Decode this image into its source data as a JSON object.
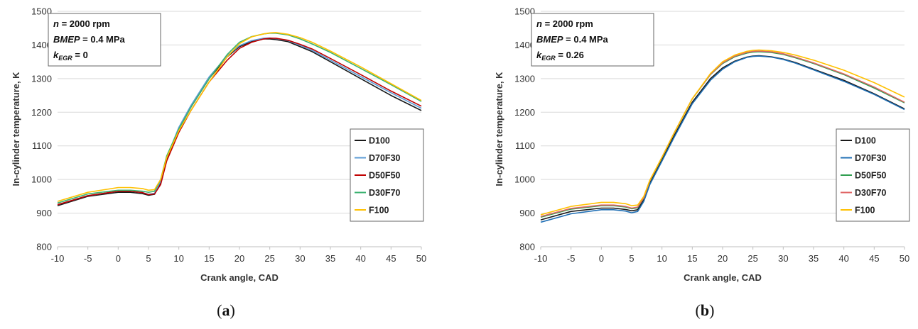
{
  "chart_data": [
    {
      "type": "line",
      "panel_label": "a",
      "xlabel": "Crank angle, CAD",
      "ylabel": "In-cylinder temperature, K",
      "xlim": [
        -10,
        50
      ],
      "ylim": [
        800,
        1500
      ],
      "xticks": [
        -10,
        -5,
        0,
        5,
        10,
        15,
        20,
        25,
        30,
        35,
        40,
        45,
        50
      ],
      "yticks": [
        800,
        900,
        1000,
        1100,
        1200,
        1300,
        1400,
        1500
      ],
      "grid": "horizontal",
      "legend_position": "right",
      "annotation": {
        "line1": {
          "var": "n",
          "text": " = 2000 rpm"
        },
        "line2": {
          "var": "BMEP",
          "text": " = 0.4 MPa"
        },
        "line3": {
          "var": "k",
          "sub": "EGR",
          "text": " = 0"
        }
      },
      "x": [
        -10,
        -5,
        0,
        2,
        4,
        5,
        6,
        7,
        8,
        10,
        12,
        15,
        18,
        20,
        22,
        24,
        25,
        26,
        28,
        30,
        32,
        35,
        40,
        45,
        50
      ],
      "series": [
        {
          "name": "D100",
          "color": "#1a1a1a",
          "values": [
            922,
            950,
            962,
            962,
            958,
            953,
            956,
            990,
            1060,
            1150,
            1215,
            1300,
            1365,
            1395,
            1410,
            1418,
            1418,
            1416,
            1410,
            1395,
            1380,
            1350,
            1300,
            1250,
            1205
          ]
        },
        {
          "name": "D70F30",
          "color": "#5b9bd5",
          "values": [
            925,
            952,
            965,
            965,
            961,
            956,
            959,
            995,
            1065,
            1155,
            1220,
            1305,
            1368,
            1398,
            1413,
            1420,
            1421,
            1419,
            1413,
            1399,
            1384,
            1355,
            1306,
            1258,
            1212
          ]
        },
        {
          "name": "D50F50",
          "color": "#c00000",
          "values": [
            925,
            952,
            965,
            965,
            961,
            955,
            957,
            985,
            1055,
            1140,
            1205,
            1290,
            1355,
            1390,
            1408,
            1418,
            1420,
            1420,
            1414,
            1402,
            1388,
            1360,
            1312,
            1263,
            1218
          ]
        },
        {
          "name": "D30F70",
          "color": "#3cb371",
          "values": [
            930,
            957,
            968,
            968,
            965,
            962,
            965,
            1000,
            1070,
            1150,
            1215,
            1300,
            1372,
            1408,
            1425,
            1433,
            1435,
            1435,
            1430,
            1418,
            1403,
            1378,
            1330,
            1282,
            1232
          ]
        },
        {
          "name": "F100",
          "color": "#ffc000",
          "values": [
            935,
            962,
            976,
            976,
            973,
            968,
            970,
            1000,
            1065,
            1145,
            1205,
            1290,
            1365,
            1404,
            1424,
            1433,
            1436,
            1437,
            1432,
            1422,
            1408,
            1382,
            1335,
            1285,
            1235
          ]
        }
      ]
    },
    {
      "type": "line",
      "panel_label": "b",
      "xlabel": "Crank angle, CAD",
      "ylabel": "In-cylinder temperature, K",
      "xlim": [
        -10,
        50
      ],
      "ylim": [
        800,
        1500
      ],
      "xticks": [
        -10,
        -5,
        0,
        5,
        10,
        15,
        20,
        25,
        30,
        35,
        40,
        45,
        50
      ],
      "yticks": [
        800,
        900,
        1000,
        1100,
        1200,
        1300,
        1400,
        1500
      ],
      "grid": "horizontal",
      "legend_position": "right",
      "annotation": {
        "line1": {
          "var": "n",
          "text": " = 2000 rpm"
        },
        "line2": {
          "var": "BMEP",
          "text": " = 0.4 MPa"
        },
        "line3": {
          "var": "k",
          "sub": "EGR",
          "text": " = 0.26"
        }
      },
      "x": [
        -10,
        -5,
        0,
        2,
        4,
        5,
        6,
        7,
        8,
        10,
        12,
        15,
        18,
        20,
        22,
        24,
        25,
        26,
        28,
        30,
        32,
        35,
        40,
        45,
        50
      ],
      "series": [
        {
          "name": "D100",
          "color": "#1a1a1a",
          "values": [
            880,
            905,
            915,
            915,
            911,
            907,
            910,
            940,
            990,
            1060,
            1130,
            1230,
            1300,
            1332,
            1352,
            1364,
            1367,
            1368,
            1365,
            1358,
            1348,
            1328,
            1295,
            1255,
            1210
          ]
        },
        {
          "name": "D70F30",
          "color": "#1f6fb5",
          "values": [
            873,
            898,
            910,
            910,
            906,
            901,
            905,
            935,
            985,
            1055,
            1125,
            1225,
            1295,
            1328,
            1350,
            1363,
            1366,
            1367,
            1364,
            1357,
            1346,
            1326,
            1292,
            1253,
            1208
          ]
        },
        {
          "name": "D50F50",
          "color": "#2e9e4f",
          "values": [
            888,
            912,
            922,
            922,
            918,
            913,
            916,
            945,
            995,
            1065,
            1138,
            1240,
            1312,
            1345,
            1365,
            1376,
            1379,
            1380,
            1378,
            1372,
            1362,
            1345,
            1312,
            1272,
            1228
          ]
        },
        {
          "name": "D30F70",
          "color": "#e06666",
          "values": [
            890,
            914,
            924,
            924,
            920,
            915,
            918,
            946,
            996,
            1066,
            1138,
            1240,
            1313,
            1347,
            1367,
            1378,
            1381,
            1382,
            1380,
            1374,
            1364,
            1347,
            1314,
            1275,
            1230
          ]
        },
        {
          "name": "F100",
          "color": "#ffc000",
          "values": [
            895,
            920,
            932,
            932,
            928,
            922,
            924,
            950,
            998,
            1066,
            1138,
            1240,
            1315,
            1350,
            1370,
            1381,
            1384,
            1385,
            1383,
            1378,
            1370,
            1355,
            1325,
            1288,
            1245
          ]
        }
      ]
    }
  ]
}
